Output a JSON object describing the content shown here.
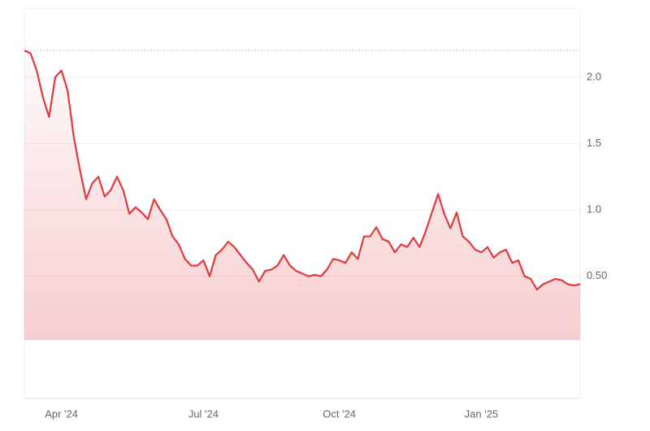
{
  "chart_data": {
    "type": "line",
    "categories": [
      null,
      null,
      null,
      null,
      null,
      null,
      "Apr '24",
      null,
      null,
      null,
      null,
      null,
      null,
      null,
      null,
      null,
      null,
      null,
      null,
      null,
      null,
      null,
      null,
      null,
      null,
      null,
      null,
      null,
      null,
      "Jul '24",
      null,
      null,
      null,
      null,
      null,
      null,
      null,
      null,
      null,
      null,
      null,
      null,
      null,
      null,
      null,
      null,
      null,
      null,
      null,
      null,
      null,
      "Oct '24",
      null,
      null,
      null,
      null,
      null,
      null,
      null,
      null,
      null,
      null,
      null,
      null,
      null,
      null,
      null,
      null,
      null,
      null,
      null,
      null,
      null,
      null,
      "Jan '25",
      null,
      null,
      null,
      null,
      null,
      null,
      null,
      null,
      null,
      null,
      null,
      null,
      null,
      null,
      null,
      null
    ],
    "values": [
      2.2,
      2.18,
      2.05,
      1.85,
      1.7,
      2.0,
      2.05,
      1.9,
      1.55,
      1.3,
      1.08,
      1.2,
      1.25,
      1.1,
      1.15,
      1.25,
      1.15,
      0.97,
      1.02,
      0.98,
      0.93,
      1.08,
      1.0,
      0.93,
      0.8,
      0.74,
      0.63,
      0.58,
      0.58,
      0.62,
      0.5,
      0.66,
      0.7,
      0.76,
      0.72,
      0.66,
      0.6,
      0.55,
      0.46,
      0.54,
      0.55,
      0.58,
      0.66,
      0.58,
      0.54,
      0.52,
      0.5,
      0.51,
      0.5,
      0.55,
      0.63,
      0.62,
      0.6,
      0.68,
      0.63,
      0.8,
      0.8,
      0.87,
      0.78,
      0.76,
      0.68,
      0.74,
      0.72,
      0.79,
      0.72,
      0.84,
      0.98,
      1.12,
      0.97,
      0.86,
      0.98,
      0.8,
      0.76,
      0.7,
      0.68,
      0.72,
      0.64,
      0.68,
      0.7,
      0.6,
      0.62,
      0.5,
      0.48,
      0.4,
      0.44,
      0.46,
      0.48,
      0.47,
      0.44,
      0.43,
      0.44
    ],
    "color": "#e03a3e",
    "reference_value": 2.2,
    "ylim": [
      0.02,
      2.52
    ],
    "yticks": [
      {
        "value": 0.5,
        "label": "0.50"
      },
      {
        "value": 1,
        "label": "1.0"
      },
      {
        "value": 1.5,
        "label": "1.5"
      },
      {
        "value": 2,
        "label": "2.0"
      }
    ],
    "grid": true
  }
}
